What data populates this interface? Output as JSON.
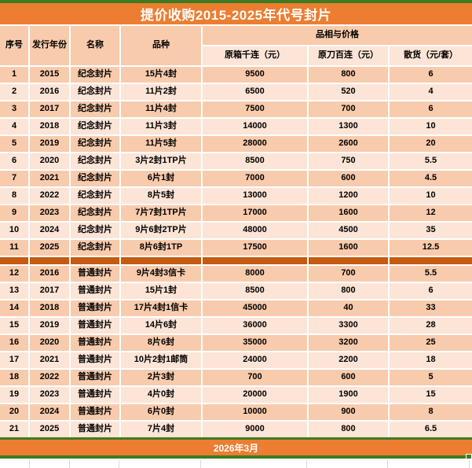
{
  "title": "提价收购2015-2025年代号封片",
  "columns": [
    "序号",
    "发行年份",
    "名称",
    "品种"
  ],
  "price_group_header": "品相与价格",
  "price_columns": [
    "原箱千连（元）",
    "原刀百连（元）",
    "散货（元/套）"
  ],
  "sections": [
    {
      "name_label": "纪念封片",
      "rows": [
        [
          "1",
          "2015",
          "纪念封片",
          "15片4封",
          "9500",
          "800",
          "6"
        ],
        [
          "2",
          "2016",
          "纪念封片",
          "11片2封",
          "6500",
          "520",
          "4"
        ],
        [
          "3",
          "2017",
          "纪念封片",
          "11片4封",
          "7500",
          "700",
          "6"
        ],
        [
          "4",
          "2018",
          "纪念封片",
          "11片3封",
          "14000",
          "1300",
          "10"
        ],
        [
          "5",
          "2019",
          "纪念封片",
          "11片5封",
          "28000",
          "2600",
          "20"
        ],
        [
          "6",
          "2020",
          "纪念封片",
          "3片2封1TP片",
          "8500",
          "750",
          "5.5"
        ],
        [
          "7",
          "2021",
          "纪念封片",
          "6片1封",
          "7000",
          "600",
          "4.5"
        ],
        [
          "8",
          "2022",
          "纪念封片",
          "8片5封",
          "13000",
          "1200",
          "10"
        ],
        [
          "9",
          "2023",
          "纪念封片",
          "7片7封1TP片",
          "17000",
          "1600",
          "12"
        ],
        [
          "10",
          "2024",
          "纪念封片",
          "9片6封2TP片",
          "48000",
          "4500",
          "35"
        ],
        [
          "11",
          "2025",
          "纪念封片",
          "8片6封1TP",
          "17500",
          "1600",
          "12.5"
        ]
      ]
    },
    {
      "name_label": "普通封片",
      "rows": [
        [
          "12",
          "2016",
          "普通封片",
          "9片4封3信卡",
          "8000",
          "700",
          "5.5"
        ],
        [
          "13",
          "2017",
          "普通封片",
          "15片1封",
          "8500",
          "800",
          "6"
        ],
        [
          "14",
          "2018",
          "普通封片",
          "17片4封1信卡",
          "45000",
          "40",
          "33"
        ],
        [
          "15",
          "2019",
          "普通封片",
          "14片6封",
          "36000",
          "3300",
          "28"
        ],
        [
          "16",
          "2020",
          "普通封片",
          "8片6封",
          "35000",
          "3200",
          "25"
        ],
        [
          "17",
          "2021",
          "普通封片",
          "10片2封1邮筒",
          "24000",
          "2200",
          "18"
        ],
        [
          "18",
          "2022",
          "普通封片",
          "2片3封",
          "700",
          "600",
          "5"
        ],
        [
          "19",
          "2023",
          "普通封片",
          "4片0封",
          "20000",
          "1900",
          "15"
        ],
        [
          "20",
          "2024",
          "普通封片",
          "6片0封",
          "10000",
          "900",
          "8"
        ],
        [
          "21",
          "2025",
          "普通封片",
          "7片4封",
          "9000",
          "800",
          "6.5"
        ]
      ]
    }
  ],
  "footer": "2026年3月",
  "colors": {
    "accent_orange": "#ED7D31",
    "separator_orange": "#C55A11",
    "row_dark": "#F8CBAD",
    "row_light": "#FCE4D6",
    "selection_green": "#3e7b22",
    "title_text": "#ffffff",
    "cell_text": "#000000"
  }
}
